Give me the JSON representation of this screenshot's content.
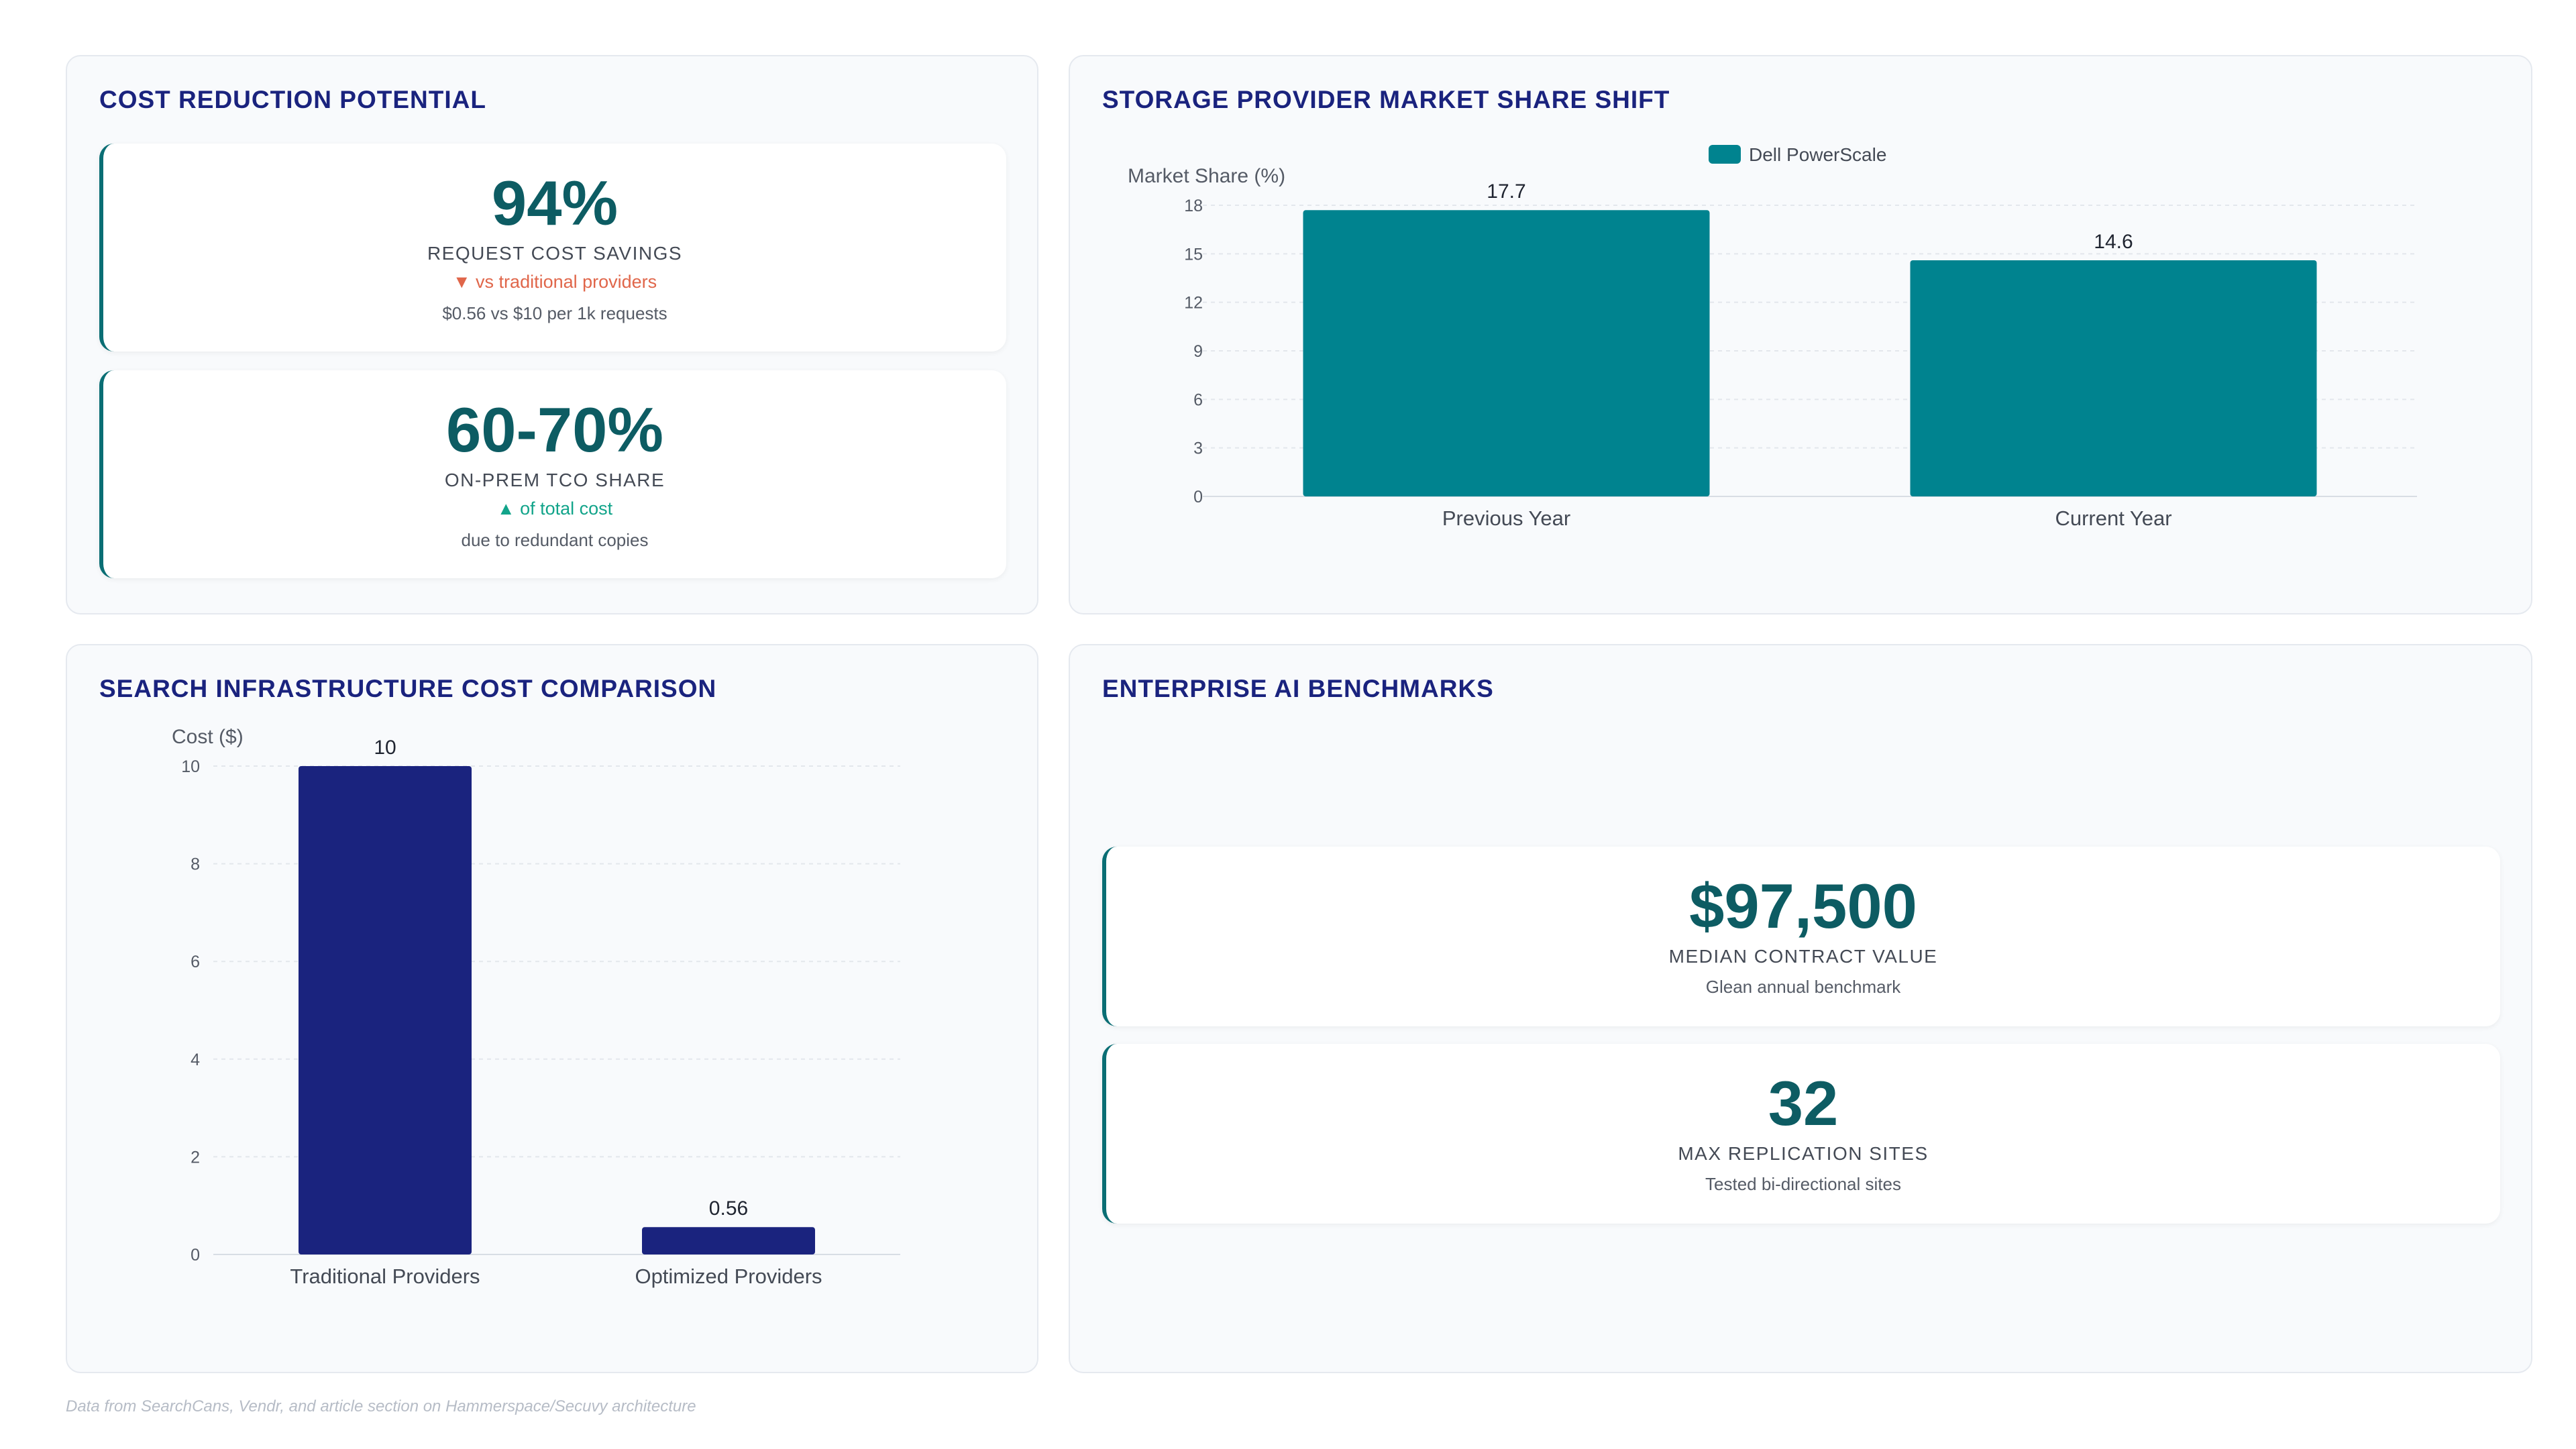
{
  "cost_panel": {
    "title": "COST REDUCTION POTENTIAL",
    "kpis": [
      {
        "value": "94%",
        "label": "REQUEST COST SAVINGS",
        "trend": "▼ vs traditional providers",
        "trend_dir": "down",
        "note": "$0.56 vs $10 per 1k requests"
      },
      {
        "value": "60-70%",
        "label": "ON-PREM TCO SHARE",
        "trend": "▲ of total cost",
        "trend_dir": "up",
        "note": "due to redundant copies"
      }
    ]
  },
  "benchmark_panel": {
    "title": "ENTERPRISE AI BENCHMARKS",
    "kpis": [
      {
        "value": "$97,500",
        "label": "MEDIAN CONTRACT VALUE",
        "note": "Glean annual benchmark"
      },
      {
        "value": "32",
        "label": "MAX REPLICATION SITES",
        "note": "Tested bi-directional sites"
      }
    ]
  },
  "market_panel": {
    "title": "STORAGE PROVIDER MARKET SHARE SHIFT"
  },
  "search_panel": {
    "title": "SEARCH INFRASTRUCTURE COST COMPARISON"
  },
  "footer": "Data from SearchCans, Vendr, and article section on Hammerspace/Secuvy architecture",
  "chart_data": [
    {
      "type": "bar",
      "title": "STORAGE PROVIDER MARKET SHARE SHIFT",
      "categories": [
        "Previous Year",
        "Current Year"
      ],
      "series": [
        {
          "name": "Dell PowerScale",
          "values": [
            17.7,
            14.6
          ],
          "color": "#00838f"
        }
      ],
      "ylabel": "Market Share (%)",
      "ylim": [
        0,
        18
      ],
      "yticks": [
        0,
        3,
        6,
        9,
        12,
        15,
        18
      ],
      "legend": "top",
      "grid": true
    },
    {
      "type": "bar",
      "title": "SEARCH INFRASTRUCTURE COST COMPARISON",
      "categories": [
        "Traditional Providers",
        "Optimized Providers"
      ],
      "series": [
        {
          "values": [
            10,
            0.56
          ],
          "color": "#1a237e"
        }
      ],
      "ylabel": "Cost ($)",
      "ylim": [
        0,
        10
      ],
      "yticks": [
        0,
        2,
        4,
        6,
        8,
        10
      ],
      "grid": true
    }
  ]
}
